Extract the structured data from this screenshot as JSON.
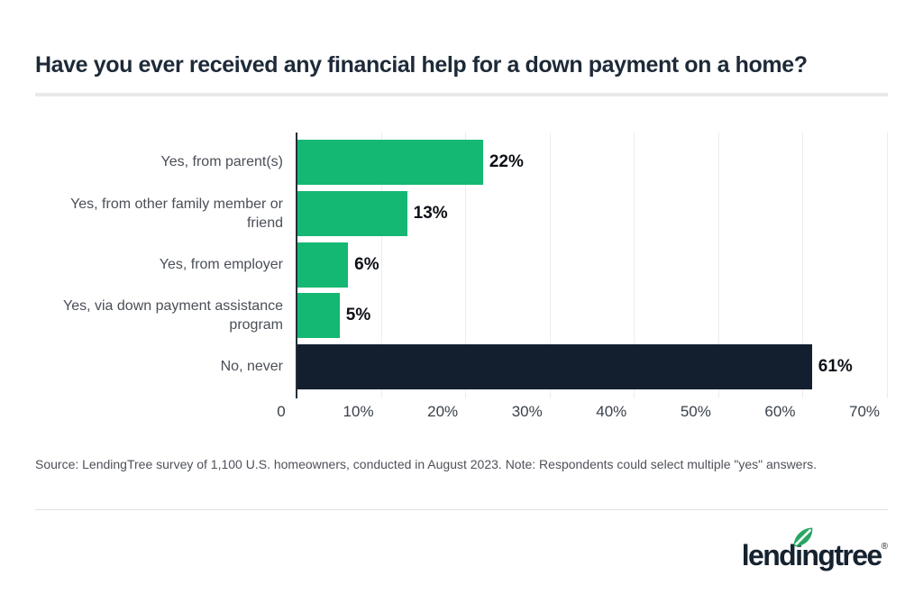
{
  "title": "Have you ever received any financial help for a down payment on a home?",
  "source_note": "Source: LendingTree survey of 1,100 U.S. homeowners, conducted in August 2023. Note: Respondents could select multiple \"yes\" answers.",
  "logo": {
    "text": "lendingtree",
    "registered_mark": "®",
    "icon": "leaf-icon",
    "text_color": "#15222f",
    "leaf_color": "#28a663"
  },
  "colors": {
    "yes_bar_green": "#14b873",
    "no_bar_navy": "#131f2e",
    "title_text": "#1e2a38",
    "category_text": "#4a4f57",
    "tick_text": "#3a414b",
    "value_text": "#0d1117",
    "gridline": "#ececec",
    "axis_line": "#242e3a",
    "divider": "#e9e9e9"
  },
  "chart_data": {
    "type": "bar",
    "orientation": "horizontal",
    "title": "Have you ever received any financial help for a down payment on a home?",
    "categories": [
      "Yes, from parent(s)",
      "Yes, from other family member or friend",
      "Yes, from employer",
      "Yes, via down payment assistance program",
      "No, never"
    ],
    "values": [
      22,
      13,
      6,
      5,
      61
    ],
    "value_labels": [
      "22%",
      "13%",
      "6%",
      "5%",
      "61%"
    ],
    "bar_colors": [
      "#14b873",
      "#14b873",
      "#14b873",
      "#14b873",
      "#131f2e"
    ],
    "xlabel": "",
    "ylabel": "",
    "xlim": [
      0,
      70
    ],
    "x_tick_labels": [
      "0",
      "10%",
      "20%",
      "30%",
      "40%",
      "50%",
      "60%",
      "70%"
    ],
    "grid": "vertical-on",
    "legend": "none",
    "value_label_position": "outside-end"
  }
}
